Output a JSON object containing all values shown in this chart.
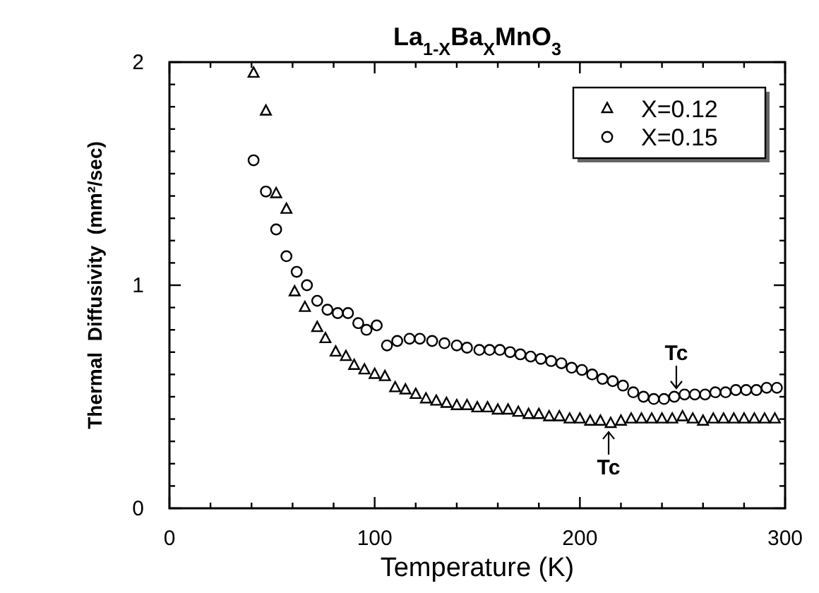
{
  "chart_data": {
    "type": "scatter",
    "title": "La$_{1-X}$Ba$_{X}$MnO$_{3}$",
    "xlabel": "Temperature (K)",
    "ylabel": "Thermal  Diffusivity  (mm²/sec)",
    "xlim": [
      0,
      300
    ],
    "ylim": [
      0,
      2
    ],
    "xticks": [
      0,
      {
        "value": 20,
        "label": null
      },
      {
        "value": 40,
        "label": null
      },
      {
        "value": 60,
        "label": null
      },
      {
        "value": 80,
        "label": null
      },
      100,
      {
        "value": 120,
        "label": null
      },
      {
        "value": 140,
        "label": null
      },
      {
        "value": 160,
        "label": null
      },
      {
        "value": 180,
        "label": null
      },
      200,
      {
        "value": 220,
        "label": null
      },
      {
        "value": 240,
        "label": null
      },
      {
        "value": 260,
        "label": null
      },
      {
        "value": 280,
        "label": null
      },
      300
    ],
    "yticks": [
      0,
      {
        "value": 0.1,
        "label": null
      },
      {
        "value": 0.2,
        "label": null
      },
      {
        "value": 0.3,
        "label": null
      },
      {
        "value": 0.4,
        "label": null
      },
      {
        "value": 0.5,
        "label": null
      },
      {
        "value": 0.6,
        "label": null
      },
      {
        "value": 0.7,
        "label": null
      },
      {
        "value": 0.8,
        "label": null
      },
      {
        "value": 0.9,
        "label": null
      },
      1,
      {
        "value": 1.1,
        "label": null
      },
      {
        "value": 1.2,
        "label": null
      },
      {
        "value": 1.3,
        "label": null
      },
      {
        "value": 1.4,
        "label": null
      },
      {
        "value": 1.5,
        "label": null
      },
      {
        "value": 1.6,
        "label": null
      },
      {
        "value": 1.7,
        "label": null
      },
      {
        "value": 1.8,
        "label": null
      },
      {
        "value": 1.9,
        "label": null
      },
      2
    ],
    "grid": false,
    "legend": "top right",
    "series": [
      {
        "name": "X=0.12",
        "color": "#000000",
        "marker": "triangle",
        "x": [
          41,
          47,
          52,
          57,
          61,
          66,
          72,
          76,
          81,
          86,
          90,
          95,
          100,
          105,
          110,
          115,
          120,
          125,
          130,
          135,
          140,
          145,
          150,
          155,
          160,
          165,
          170,
          175,
          180,
          185,
          190,
          195,
          200,
          205,
          210,
          215,
          220,
          225,
          230,
          235,
          240,
          245,
          250,
          255,
          260,
          265,
          270,
          275,
          280,
          285,
          290,
          295
        ],
        "values": [
          1.95,
          1.78,
          1.41,
          1.34,
          0.97,
          0.9,
          0.81,
          0.76,
          0.7,
          0.68,
          0.64,
          0.62,
          0.6,
          0.59,
          0.54,
          0.53,
          0.51,
          0.49,
          0.48,
          0.47,
          0.46,
          0.46,
          0.45,
          0.45,
          0.44,
          0.44,
          0.43,
          0.42,
          0.42,
          0.41,
          0.41,
          0.4,
          0.4,
          0.39,
          0.39,
          0.38,
          0.39,
          0.4,
          0.4,
          0.4,
          0.4,
          0.4,
          0.41,
          0.4,
          0.39,
          0.4,
          0.4,
          0.4,
          0.4,
          0.4,
          0.4,
          0.4
        ]
      },
      {
        "name": "X=0.15",
        "color": "#000000",
        "marker": "circle",
        "x": [
          41,
          47,
          52,
          57,
          62,
          67,
          72,
          77,
          82,
          87,
          92,
          96,
          101,
          106,
          111,
          117,
          122,
          128,
          134,
          140,
          145,
          151,
          156,
          161,
          166,
          171,
          176,
          181,
          186,
          191,
          196,
          201,
          206,
          211,
          216,
          221,
          226,
          231,
          236,
          241,
          246,
          251,
          256,
          261,
          266,
          271,
          276,
          281,
          286,
          291,
          296
        ],
        "values": [
          1.56,
          1.42,
          1.25,
          1.13,
          1.06,
          1.0,
          0.93,
          0.89,
          0.875,
          0.875,
          0.83,
          0.8,
          0.82,
          0.73,
          0.75,
          0.76,
          0.76,
          0.75,
          0.74,
          0.73,
          0.72,
          0.71,
          0.71,
          0.71,
          0.7,
          0.69,
          0.68,
          0.67,
          0.66,
          0.65,
          0.63,
          0.62,
          0.6,
          0.58,
          0.57,
          0.55,
          0.52,
          0.5,
          0.49,
          0.49,
          0.5,
          0.51,
          0.51,
          0.51,
          0.52,
          0.52,
          0.53,
          0.53,
          0.53,
          0.54,
          0.54
        ]
      }
    ],
    "annotations": [
      {
        "text": "Tc",
        "x": 247,
        "y": 0.5
      },
      {
        "text": "Tc",
        "x": 214,
        "y": 0.38
      }
    ]
  }
}
